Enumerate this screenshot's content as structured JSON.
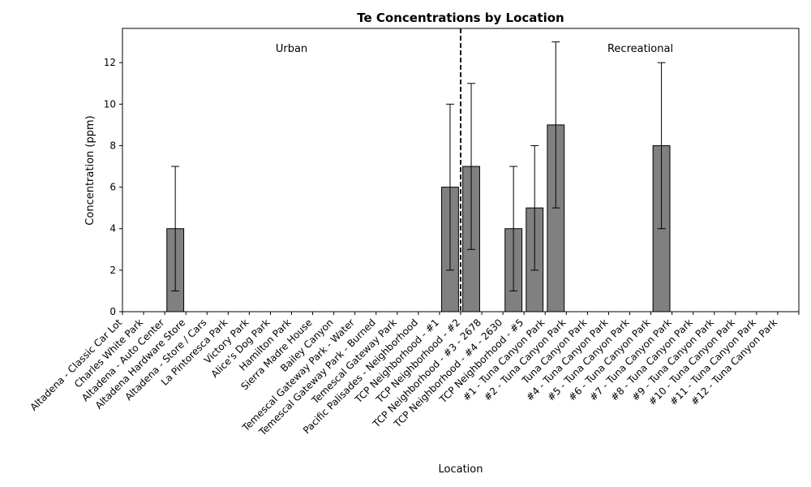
{
  "chart_data": {
    "type": "bar",
    "title": "Te Concentrations by Location",
    "xlabel": "Location",
    "ylabel": "Concentration (ppm)",
    "ylim": [
      0,
      13.65
    ],
    "yticks": [
      0,
      2,
      4,
      6,
      8,
      10,
      12
    ],
    "grid": false,
    "bar_color": "#808080",
    "edge_color": "#000000",
    "categories": [
      "Altadena - Classic Car Lot",
      "Charles White Park",
      "Altadena - Auto Center",
      "Altadena Hardware Store",
      "Altadena - Store / Cars",
      "La Pintoresca Park",
      "Victory Park",
      "Alice's Dog Park",
      "Hamilton Park",
      "Sierra Madre House",
      "Bailey Canyon",
      "Temescal Gateway Park - Water",
      "Temescal Gateway Park - Burned",
      "Temescal Gateway Park",
      "Pacific Palisades - Neighborhood",
      "TCP Neighborhood - #1",
      "TCP Neighborhood - #2",
      "TCP Neighborhood - #3 - 2678",
      "TCP Neighborhood - #4 - 2630",
      "TCP Neighborhood - #5",
      "#1 - Tuna Canyon Park",
      "#2 - Tuna Canyon Park",
      "Tuna Canyon Park",
      "#4 - Tuna Canyon Park",
      "#5 - Tuna Canyon Park",
      "#6 - Tuna Canyon Park",
      "#7 - Tuna Canyon Park",
      "#8 - Tuna Canyon Park",
      "#9 - Tuna Canyon Park",
      "#10 - Tuna Canyon Park",
      "#11 - Tuna Canyon Park",
      "#12 - Tuna Canyon Park"
    ],
    "values": [
      0,
      0,
      4,
      0,
      0,
      0,
      0,
      0,
      0,
      0,
      0,
      0,
      0,
      0,
      0,
      6,
      7,
      0,
      4,
      5,
      9,
      0,
      0,
      0,
      0,
      8,
      0,
      0,
      0,
      0,
      0,
      0
    ],
    "errors": [
      0,
      0,
      3,
      0,
      0,
      0,
      0,
      0,
      0,
      0,
      0,
      0,
      0,
      0,
      0,
      4,
      4,
      0,
      3,
      3,
      4,
      0,
      0,
      0,
      0,
      4,
      0,
      0,
      0,
      0,
      0,
      0
    ],
    "divider_after_index": 15,
    "regions": [
      {
        "label": "Urban",
        "center_index": 7.5
      },
      {
        "label": "Recreational",
        "center_index": 24
      }
    ]
  }
}
